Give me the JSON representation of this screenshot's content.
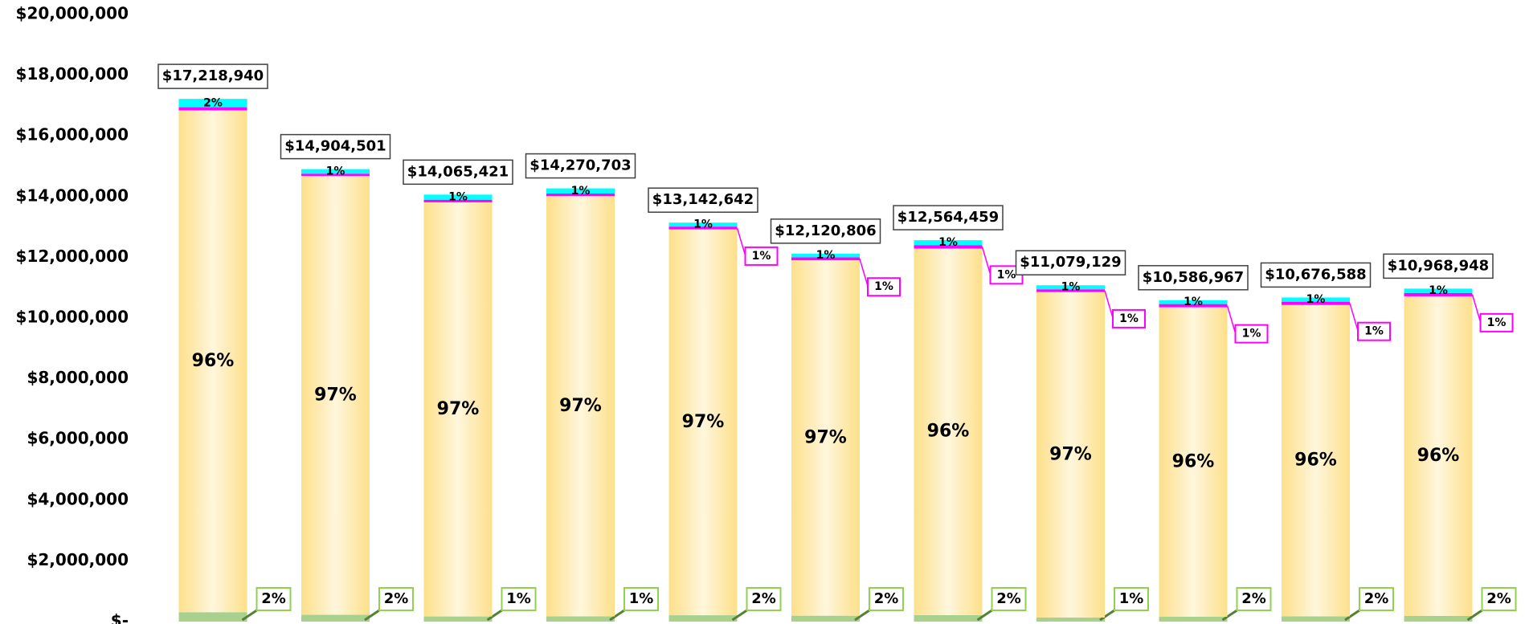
{
  "chart_data": {
    "type": "stacked_bar",
    "categories": [
      null,
      null,
      null,
      null,
      null,
      null,
      null,
      null,
      null,
      null,
      null
    ],
    "ylim": [
      0,
      20000000
    ],
    "yticks": [
      {
        "value": 0,
        "label": "$-"
      },
      {
        "value": 2000000,
        "label": "$2,000,000"
      },
      {
        "value": 4000000,
        "label": "$4,000,000"
      },
      {
        "value": 6000000,
        "label": "$6,000,000"
      },
      {
        "value": 8000000,
        "label": "$8,000,000"
      },
      {
        "value": 10000000,
        "label": "$10,000,000"
      },
      {
        "value": 12000000,
        "label": "$12,000,000"
      },
      {
        "value": 14000000,
        "label": "$14,000,000"
      },
      {
        "value": 16000000,
        "label": "$16,000,000"
      },
      {
        "value": 18000000,
        "label": "$18,000,000"
      },
      {
        "value": 20000000,
        "label": "$20,000,000"
      }
    ],
    "grid": false,
    "series": [
      {
        "color": "#a9d18e",
        "values": [
          310000,
          224000,
          169000,
          171000,
          210000,
          194000,
          214000,
          133000,
          159000,
          171000,
          186000
        ],
        "percent_labels": [
          "2%",
          "2%",
          "1%",
          "1%",
          "2%",
          "2%",
          "2%",
          "1%",
          "2%",
          "2%",
          "2%"
        ]
      },
      {
        "color": "#fde08a",
        "values": [
          16529940,
          14456501,
          13643421,
          13842703,
          12709642,
          11708806,
          12074459,
          10724129,
          10194967,
          10259588,
          10529948
        ],
        "percent_labels": [
          "96%",
          "97%",
          "97%",
          "97%",
          "97%",
          "97%",
          "96%",
          "97%",
          "96%",
          "96%",
          "96%"
        ]
      },
      {
        "color": "#ff00ff",
        "values": [
          103000,
          75000,
          84000,
          86000,
          92000,
          97000,
          113000,
          89000,
          106000,
          107000,
          110000
        ],
        "percent_labels": [
          null,
          null,
          null,
          null,
          "1%",
          "1%",
          "1%",
          "1%",
          "1%",
          "1%",
          "1%"
        ]
      },
      {
        "color": "#00ffff",
        "values": [
          276000,
          149000,
          169000,
          171000,
          131000,
          121000,
          163000,
          133000,
          127000,
          139000,
          143000
        ],
        "percent_labels": [
          "2%",
          "1%",
          "1%",
          "1%",
          "1%",
          "1%",
          "1%",
          "1%",
          "1%",
          "1%",
          "1%"
        ]
      }
    ],
    "totals": [
      17218940,
      14904501,
      14065421,
      14270703,
      13142642,
      12120806,
      12564459,
      11079129,
      10586967,
      10676588,
      10968948
    ],
    "total_labels": [
      "$17,218,940",
      "$14,904,501",
      "$14,065,421",
      "$14,270,703",
      "$13,142,642",
      "$12,120,806",
      "$12,564,459",
      "$11,079,129",
      "$10,586,967",
      "$10,676,588",
      "$10,968,948"
    ]
  }
}
